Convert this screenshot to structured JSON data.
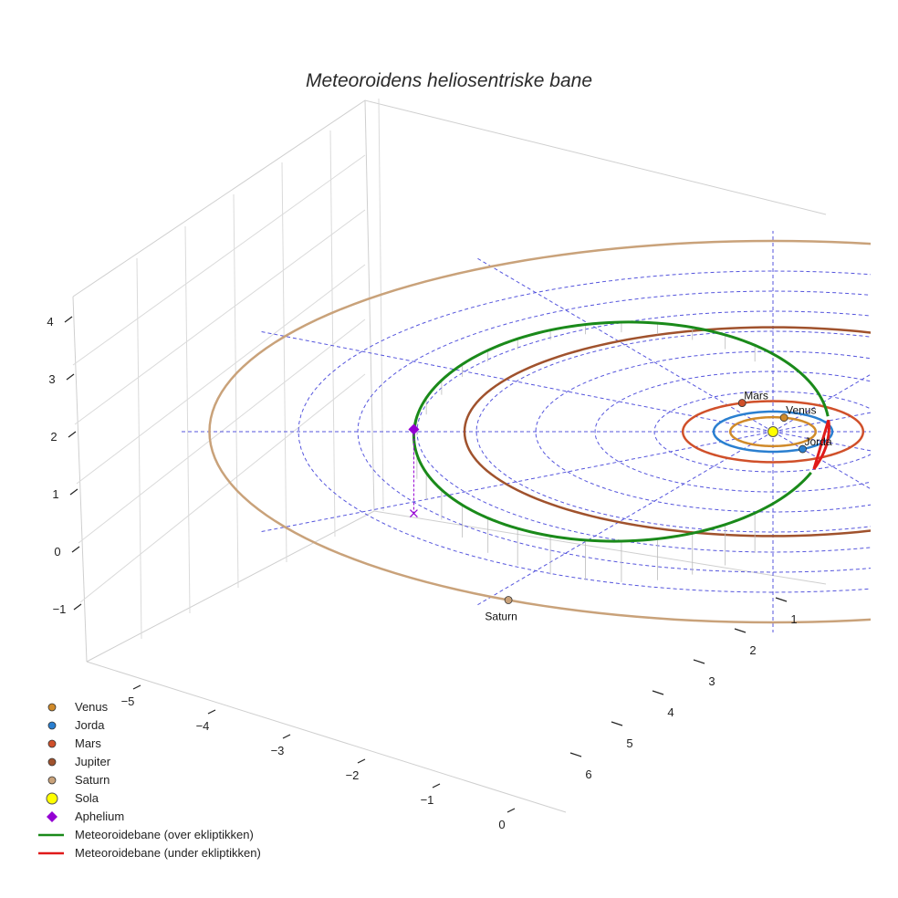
{
  "chart_data": {
    "type": "scatter",
    "title": "Meteoroidens heliosentriske bane",
    "projection": "3d",
    "xlabel": "",
    "ylabel": "",
    "zlabel": "",
    "x_ticks": [
      "−5",
      "−4",
      "−3",
      "−2",
      "−1",
      "0"
    ],
    "y_ticks": [
      "1",
      "2",
      "3",
      "4",
      "5",
      "6"
    ],
    "z_ticks": [
      "4",
      "3",
      "2",
      "1",
      "0",
      "−1"
    ],
    "xlim": [
      -5.5,
      0.2
    ],
    "ylim": [
      0.5,
      6.2
    ],
    "zlim": [
      -1.3,
      4.2
    ],
    "grid": true,
    "legend_position": "bottom-left",
    "planet_orbit_radii_au": {
      "Venus": 0.72,
      "Jorda": 1.0,
      "Mars": 1.52,
      "Jupiter": 5.2,
      "Saturn": 9.5
    },
    "planets": [
      {
        "name": "Venus",
        "label": "Venus",
        "color": "#d08a2a"
      },
      {
        "name": "Jorda",
        "label": "Jorda",
        "color": "#2a7fd0"
      },
      {
        "name": "Mars",
        "label": "Mars",
        "color": "#d0502a"
      },
      {
        "name": "Jupiter",
        "label": "",
        "color": "#a0522d"
      },
      {
        "name": "Saturn",
        "label": "Saturn",
        "color": "#c9a27a"
      }
    ],
    "sun": {
      "name": "Sola",
      "color": "#ffff00"
    },
    "aphelium": {
      "name": "Aphelium",
      "color": "#9400d3"
    },
    "meteoroid_orbit": {
      "semi_major_au": 3.5,
      "eccentricity": 0.73,
      "series": [
        {
          "name": "Meteoroidebane (over ekliptikken)",
          "color": "#1a8a1a"
        },
        {
          "name": "Meteoroidebane (under ekliptikken)",
          "color": "#e01a1a"
        }
      ]
    },
    "legend": [
      {
        "label": "Venus",
        "kind": "dot",
        "color": "#d08a2a"
      },
      {
        "label": "Jorda",
        "kind": "dot",
        "color": "#2a7fd0"
      },
      {
        "label": "Mars",
        "kind": "dot",
        "color": "#d0502a"
      },
      {
        "label": "Jupiter",
        "kind": "dot",
        "color": "#a0522d"
      },
      {
        "label": "Saturn",
        "kind": "dot",
        "color": "#c9a27a"
      },
      {
        "label": "Sola",
        "kind": "sun",
        "color": "#ffff00"
      },
      {
        "label": "Aphelium",
        "kind": "diamond",
        "color": "#9400d3"
      },
      {
        "label": "Meteoroidebane (over ekliptikken)",
        "kind": "line",
        "color": "#1a8a1a"
      },
      {
        "label": "Meteoroidebane (under ekliptikken)",
        "kind": "line",
        "color": "#e01a1a"
      }
    ]
  }
}
